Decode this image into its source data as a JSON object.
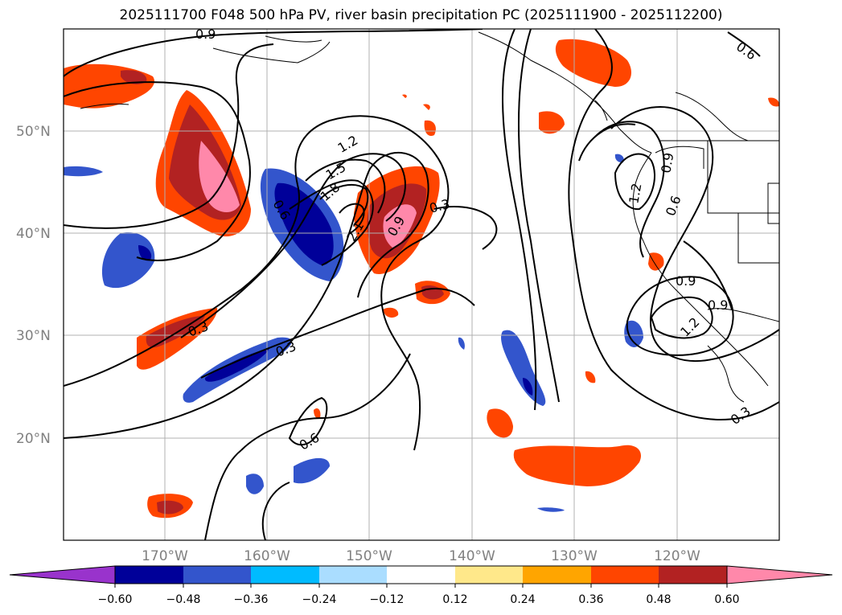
{
  "title": "2025111700 F048 500 hPa PV, river basin precipitation PC (2025111900 - 2025112200)",
  "map": {
    "lat_labels": [
      "50°N",
      "40°N",
      "30°N",
      "20°N"
    ],
    "lon_labels": [
      "170°W",
      "160°W",
      "150°W",
      "140°W",
      "130°W",
      "120°W"
    ],
    "contour_labels": [
      "0.9",
      "0.6",
      "1.2",
      "1.5",
      "1.8",
      "2.1",
      "0.9",
      "0.6",
      "0.3",
      "0.3",
      "0.3",
      "0.6",
      "0.9",
      "1.2",
      "0.6",
      "0.9",
      "1.2",
      "0.9",
      "0.3"
    ],
    "grid": true
  },
  "colorbar": {
    "ticks": [
      "−0.60",
      "−0.48",
      "−0.36",
      "−0.24",
      "−0.12",
      "0.12",
      "0.24",
      "0.36",
      "0.48",
      "0.60"
    ],
    "colors": {
      "under": "#9933cc",
      "n060": "#000099",
      "n048": "#3355cc",
      "n036": "#00bbff",
      "n024": "#aaddff",
      "mid": "#ffffff",
      "p012": "#ffe88a",
      "p024": "#ffa500",
      "p036": "#ff4500",
      "p048": "#b22222",
      "over": "#ff88aa"
    }
  }
}
